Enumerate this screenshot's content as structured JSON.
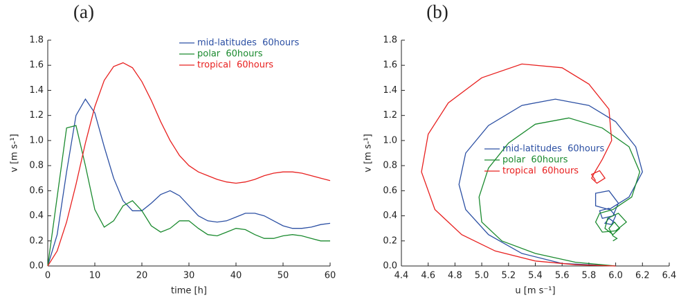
{
  "chart_data": [
    {
      "type": "line",
      "title": "(a)",
      "xlabel": "time [h]",
      "ylabel": "v [m s-¹]",
      "xlim": [
        0,
        60
      ],
      "ylim": [
        0,
        1.8
      ],
      "xticks": [
        0,
        10,
        20,
        30,
        40,
        50,
        60
      ],
      "yticks": [
        {
          "value": 0,
          "label": "0.0"
        },
        0.2,
        0.4,
        0.6,
        0.8,
        {
          "value": 1,
          "label": "1.0"
        },
        1.2,
        1.4,
        1.6,
        1.8
      ],
      "legend": "upper center",
      "x": [
        0,
        2,
        4,
        6,
        8,
        10,
        12,
        14,
        16,
        18,
        20,
        22,
        24,
        26,
        28,
        30,
        32,
        34,
        36,
        38,
        40,
        42,
        44,
        46,
        48,
        50,
        52,
        54,
        56,
        58,
        60
      ],
      "series": [
        {
          "name": "mid-latitudes  60hours",
          "color": "#2b4fa3",
          "values": [
            0,
            0.25,
            0.75,
            1.2,
            1.33,
            1.22,
            0.95,
            0.7,
            0.52,
            0.44,
            0.44,
            0.5,
            0.57,
            0.6,
            0.56,
            0.48,
            0.4,
            0.36,
            0.35,
            0.36,
            0.39,
            0.42,
            0.42,
            0.4,
            0.36,
            0.32,
            0.3,
            0.3,
            0.31,
            0.33,
            0.34
          ]
        },
        {
          "name": "polar  60hours",
          "color": "#1a8a2e",
          "values": [
            0,
            0.55,
            1.1,
            1.12,
            0.8,
            0.45,
            0.31,
            0.36,
            0.48,
            0.52,
            0.44,
            0.32,
            0.27,
            0.3,
            0.36,
            0.36,
            0.3,
            0.25,
            0.24,
            0.27,
            0.3,
            0.29,
            0.25,
            0.22,
            0.22,
            0.24,
            0.25,
            0.24,
            0.22,
            0.2,
            0.2
          ]
        },
        {
          "name": "tropical  60hours",
          "color": "#e8201f",
          "values": [
            0,
            0.12,
            0.35,
            0.65,
            0.98,
            1.27,
            1.48,
            1.59,
            1.62,
            1.58,
            1.47,
            1.32,
            1.15,
            1.0,
            0.88,
            0.8,
            0.75,
            0.72,
            0.69,
            0.67,
            0.66,
            0.67,
            0.69,
            0.72,
            0.74,
            0.75,
            0.75,
            0.74,
            0.72,
            0.7,
            0.68
          ]
        }
      ]
    },
    {
      "type": "line",
      "title": "(b)",
      "xlabel": "u [m s⁻¹]",
      "ylabel": "v [m s-¹]",
      "xlim": [
        4.4,
        6.4
      ],
      "ylim": [
        0,
        1.8
      ],
      "xticks": [
        4.4,
        4.6,
        4.8,
        {
          "value": 5,
          "label": "5.0"
        },
        5.2,
        5.4,
        5.6,
        5.8,
        {
          "value": 6,
          "label": "6.0"
        },
        6.2,
        6.4
      ],
      "yticks": [
        {
          "value": 0,
          "label": "0.0"
        },
        0.2,
        0.4,
        0.6,
        0.8,
        {
          "value": 1,
          "label": "1.0"
        },
        1.2,
        1.4,
        1.6,
        1.8
      ],
      "legend": "center",
      "series": [
        {
          "name": "mid-latitudes  60hours",
          "color": "#2b4fa3",
          "x": [
            6.0,
            5.6,
            5.3,
            5.05,
            4.88,
            4.83,
            4.88,
            5.05,
            5.3,
            5.55,
            5.8,
            6.0,
            6.15,
            6.2,
            6.1,
            5.95,
            5.85,
            5.85,
            5.95,
            6.02,
            5.98,
            5.9,
            5.88,
            5.95,
            6.0,
            5.97,
            5.92,
            5.95,
            6.0
          ],
          "values": [
            0,
            0.02,
            0.1,
            0.25,
            0.45,
            0.65,
            0.9,
            1.12,
            1.28,
            1.33,
            1.28,
            1.15,
            0.95,
            0.75,
            0.55,
            0.45,
            0.48,
            0.58,
            0.6,
            0.5,
            0.4,
            0.38,
            0.44,
            0.46,
            0.4,
            0.33,
            0.34,
            0.38,
            0.34
          ]
        },
        {
          "name": "polar  60hours",
          "color": "#1a8a2e",
          "x": [
            6.0,
            5.7,
            5.4,
            5.15,
            5.0,
            4.98,
            5.05,
            5.2,
            5.4,
            5.65,
            5.9,
            6.1,
            6.18,
            6.12,
            5.98,
            5.88,
            5.85,
            5.9,
            6.0,
            6.08,
            6.02,
            5.94,
            5.92,
            5.98,
            6.03,
            5.99,
            5.95,
            5.98,
            6.01,
            5.98
          ],
          "values": [
            0,
            0.03,
            0.1,
            0.2,
            0.35,
            0.55,
            0.78,
            0.98,
            1.13,
            1.18,
            1.1,
            0.95,
            0.75,
            0.55,
            0.45,
            0.42,
            0.35,
            0.27,
            0.28,
            0.35,
            0.42,
            0.38,
            0.3,
            0.25,
            0.3,
            0.35,
            0.3,
            0.24,
            0.22,
            0.2
          ]
        },
        {
          "name": "tropical  60hours",
          "color": "#e8201f",
          "x": [
            6.0,
            5.7,
            5.4,
            5.1,
            4.85,
            4.65,
            4.55,
            4.6,
            4.75,
            5.0,
            5.3,
            5.6,
            5.8,
            5.95,
            5.97,
            5.9,
            5.85,
            5.82,
            5.86,
            5.92,
            5.88,
            5.82,
            5.85
          ],
          "values": [
            0,
            0.01,
            0.04,
            0.12,
            0.25,
            0.45,
            0.75,
            1.05,
            1.3,
            1.5,
            1.61,
            1.58,
            1.45,
            1.25,
            1.0,
            0.85,
            0.76,
            0.7,
            0.66,
            0.7,
            0.76,
            0.73,
            0.68
          ]
        }
      ]
    }
  ]
}
